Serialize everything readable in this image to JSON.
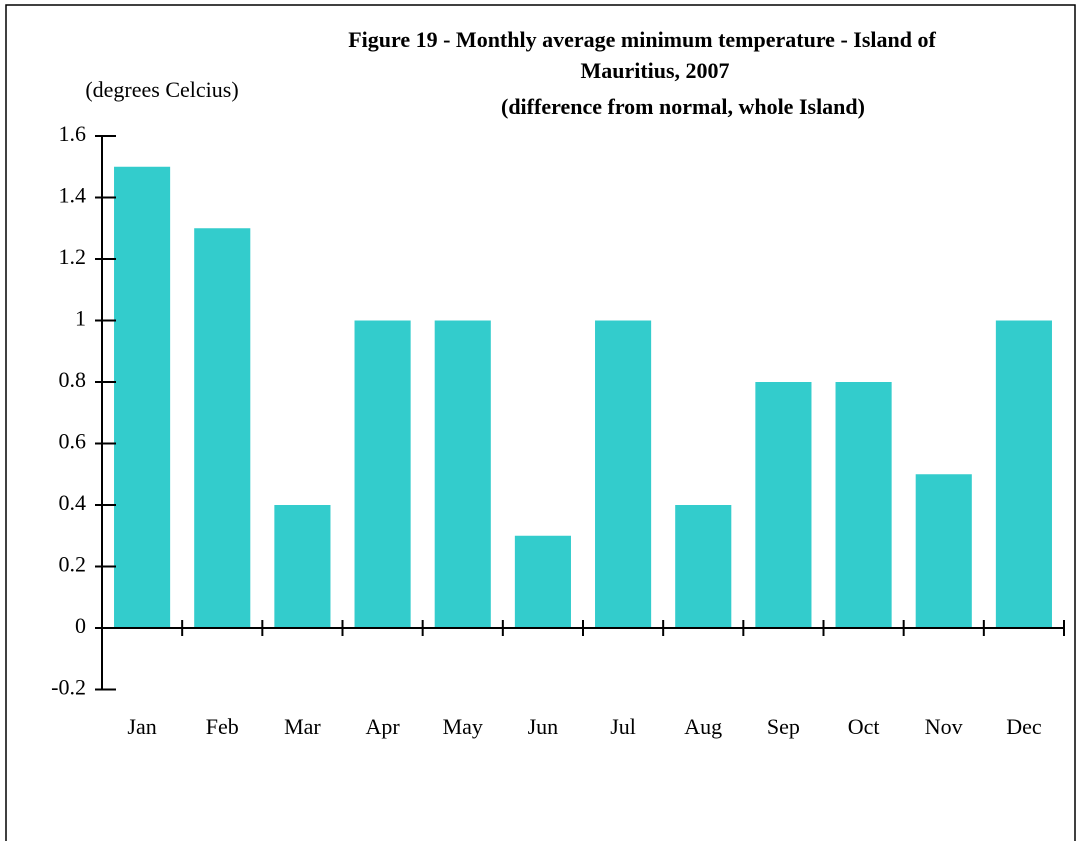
{
  "chart_data": {
    "type": "bar",
    "title": [
      "Figure 19 -  Monthly average minimum temperature - Island of",
      "Mauritius, 2007"
    ],
    "subtitle": "(difference from normal, whole Island)",
    "y_axis_label": "(degrees Celcius)",
    "categories": [
      "Jan",
      "Feb",
      "Mar",
      "Apr",
      "May",
      "Jun",
      "Jul",
      "Aug",
      "Sep",
      "Oct",
      "Nov",
      "Dec"
    ],
    "values": [
      1.5,
      1.3,
      0.4,
      1.0,
      1.0,
      0.3,
      1.0,
      0.4,
      0.8,
      0.8,
      0.5,
      1.0
    ],
    "color": "#33cccc",
    "ylim": [
      -0.2,
      1.6
    ],
    "yticks": [
      -0.2,
      0,
      0.2,
      0.4,
      0.6,
      0.8,
      1,
      1.2,
      1.4,
      1.6
    ],
    "grid": false
  }
}
